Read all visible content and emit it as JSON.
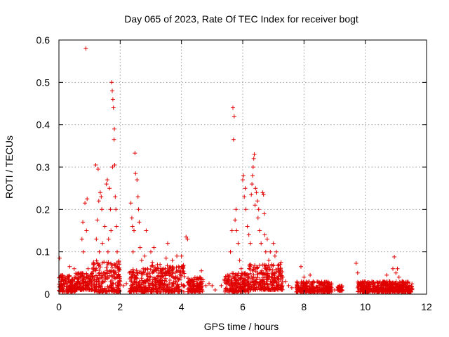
{
  "chart_data": {
    "type": "scatter",
    "title": "Day 065 of 2023, Rate Of TEC Index for receiver bogt",
    "xlabel": "GPS time / hours",
    "ylabel": "ROTI / TECUs",
    "xlim": [
      0,
      12
    ],
    "ylim": [
      0,
      0.6
    ],
    "x_ticks": [
      0,
      2,
      4,
      6,
      8,
      10,
      12
    ],
    "y_ticks": [
      0,
      0.1,
      0.2,
      0.3,
      0.4,
      0.5,
      0.6
    ],
    "x_tick_labels": [
      "0",
      "2",
      "4",
      "6",
      "8",
      "10",
      "12"
    ],
    "y_tick_labels": [
      "0",
      "0.1",
      "0.2",
      "0.3",
      "0.4",
      "0.5",
      "0.6"
    ],
    "grid": true,
    "marker": "plus",
    "color": "#e00000",
    "points": [
      [
        0.02,
        0.085
      ],
      [
        0.05,
        0.03
      ],
      [
        0.1,
        0.02
      ],
      [
        0.15,
        0.025
      ],
      [
        0.2,
        0.04
      ],
      [
        0.25,
        0.018
      ],
      [
        0.3,
        0.03
      ],
      [
        0.35,
        0.065
      ],
      [
        0.4,
        0.02
      ],
      [
        0.45,
        0.035
      ],
      [
        0.5,
        0.06
      ],
      [
        0.55,
        0.025
      ],
      [
        0.6,
        0.03
      ],
      [
        0.65,
        0.05
      ],
      [
        0.7,
        0.04
      ],
      [
        0.75,
        0.13
      ],
      [
        0.78,
        0.17
      ],
      [
        0.8,
        0.1
      ],
      [
        0.85,
        0.215
      ],
      [
        0.88,
        0.58
      ],
      [
        0.9,
        0.15
      ],
      [
        0.92,
        0.225
      ],
      [
        0.95,
        0.06
      ],
      [
        1.0,
        0.03
      ],
      [
        1.05,
        0.035
      ],
      [
        1.1,
        0.04
      ],
      [
        1.15,
        0.07
      ],
      [
        1.2,
        0.305
      ],
      [
        1.22,
        0.13
      ],
      [
        1.25,
        0.175
      ],
      [
        1.28,
        0.295
      ],
      [
        1.3,
        0.22
      ],
      [
        1.32,
        0.1
      ],
      [
        1.35,
        0.24
      ],
      [
        1.38,
        0.23
      ],
      [
        1.4,
        0.2
      ],
      [
        1.42,
        0.12
      ],
      [
        1.45,
        0.05
      ],
      [
        1.5,
        0.16
      ],
      [
        1.55,
        0.26
      ],
      [
        1.58,
        0.27
      ],
      [
        1.6,
        0.1
      ],
      [
        1.62,
        0.13
      ],
      [
        1.65,
        0.25
      ],
      [
        1.68,
        0.2
      ],
      [
        1.7,
        0.15
      ],
      [
        1.72,
        0.5
      ],
      [
        1.74,
        0.48
      ],
      [
        1.75,
        0.3
      ],
      [
        1.76,
        0.46
      ],
      [
        1.78,
        0.44
      ],
      [
        1.8,
        0.365
      ],
      [
        1.81,
        0.39
      ],
      [
        1.82,
        0.305
      ],
      [
        1.84,
        0.23
      ],
      [
        1.86,
        0.2
      ],
      [
        1.88,
        0.16
      ],
      [
        1.9,
        0.1
      ],
      [
        1.95,
        0.06
      ],
      [
        2.0,
        0.03
      ],
      [
        2.1,
        0.02
      ],
      [
        2.2,
        0.025
      ],
      [
        2.3,
        0.05
      ],
      [
        2.35,
        0.215
      ],
      [
        2.38,
        0.18
      ],
      [
        2.4,
        0.16
      ],
      [
        2.42,
        0.1
      ],
      [
        2.45,
        0.15
      ],
      [
        2.48,
        0.333
      ],
      [
        2.5,
        0.285
      ],
      [
        2.55,
        0.27
      ],
      [
        2.58,
        0.23
      ],
      [
        2.6,
        0.2
      ],
      [
        2.62,
        0.17
      ],
      [
        2.65,
        0.11
      ],
      [
        2.7,
        0.08
      ],
      [
        2.75,
        0.06
      ],
      [
        2.8,
        0.09
      ],
      [
        2.85,
        0.15
      ],
      [
        2.9,
        0.06
      ],
      [
        2.95,
        0.04
      ],
      [
        3.0,
        0.1
      ],
      [
        3.05,
        0.075
      ],
      [
        3.1,
        0.11
      ],
      [
        3.2,
        0.06
      ],
      [
        3.3,
        0.07
      ],
      [
        3.4,
        0.05
      ],
      [
        3.5,
        0.085
      ],
      [
        3.55,
        0.12
      ],
      [
        3.6,
        0.06
      ],
      [
        3.7,
        0.08
      ],
      [
        3.8,
        0.05
      ],
      [
        3.85,
        0.09
      ],
      [
        3.9,
        0.065
      ],
      [
        3.95,
        0.035
      ],
      [
        4.0,
        0.09
      ],
      [
        4.05,
        0.05
      ],
      [
        4.1,
        0.02
      ],
      [
        4.15,
        0.135
      ],
      [
        4.2,
        0.13
      ],
      [
        4.3,
        0.03
      ],
      [
        4.4,
        0.02
      ],
      [
        4.5,
        0.025
      ],
      [
        4.6,
        0.04
      ],
      [
        4.65,
        0.055
      ],
      [
        4.7,
        0.03
      ],
      [
        4.8,
        0.02
      ],
      [
        4.9,
        0.025
      ],
      [
        5.0,
        0.02
      ],
      [
        5.1,
        0.01
      ],
      [
        5.3,
        0.02
      ],
      [
        5.4,
        0.035
      ],
      [
        5.5,
        0.045
      ],
      [
        5.6,
        0.1
      ],
      [
        5.65,
        0.15
      ],
      [
        5.68,
        0.44
      ],
      [
        5.7,
        0.365
      ],
      [
        5.72,
        0.42
      ],
      [
        5.75,
        0.175
      ],
      [
        5.78,
        0.2
      ],
      [
        5.8,
        0.15
      ],
      [
        5.85,
        0.12
      ],
      [
        5.9,
        0.08
      ],
      [
        5.95,
        0.06
      ],
      [
        6.0,
        0.27
      ],
      [
        6.02,
        0.28
      ],
      [
        6.05,
        0.23
      ],
      [
        6.08,
        0.25
      ],
      [
        6.1,
        0.2
      ],
      [
        6.15,
        0.16
      ],
      [
        6.2,
        0.14
      ],
      [
        6.25,
        0.12
      ],
      [
        6.28,
        0.235
      ],
      [
        6.3,
        0.26
      ],
      [
        6.32,
        0.28
      ],
      [
        6.34,
        0.3
      ],
      [
        6.36,
        0.32
      ],
      [
        6.38,
        0.33
      ],
      [
        6.4,
        0.21
      ],
      [
        6.42,
        0.25
      ],
      [
        6.45,
        0.24
      ],
      [
        6.48,
        0.22
      ],
      [
        6.5,
        0.18
      ],
      [
        6.52,
        0.2
      ],
      [
        6.55,
        0.15
      ],
      [
        6.6,
        0.12
      ],
      [
        6.65,
        0.24
      ],
      [
        6.68,
        0.235
      ],
      [
        6.7,
        0.19
      ],
      [
        6.72,
        0.14
      ],
      [
        6.75,
        0.1
      ],
      [
        6.8,
        0.13
      ],
      [
        6.85,
        0.08
      ],
      [
        6.9,
        0.1
      ],
      [
        6.95,
        0.07
      ],
      [
        7.0,
        0.12
      ],
      [
        7.05,
        0.09
      ],
      [
        7.1,
        0.1
      ],
      [
        7.15,
        0.06
      ],
      [
        7.2,
        0.05
      ],
      [
        7.25,
        0.075
      ],
      [
        7.3,
        0.04
      ],
      [
        7.4,
        0.03
      ],
      [
        7.5,
        0.02
      ],
      [
        7.6,
        0.015
      ],
      [
        7.8,
        0.025
      ],
      [
        7.9,
        0.065
      ],
      [
        8.0,
        0.04
      ],
      [
        8.1,
        0.02
      ],
      [
        8.2,
        0.045
      ],
      [
        8.3,
        0.03
      ],
      [
        8.4,
        0.015
      ],
      [
        8.5,
        0.02
      ],
      [
        8.7,
        0.01
      ],
      [
        8.9,
        0.015
      ],
      [
        9.0,
        0.01
      ],
      [
        9.2,
        0.015
      ],
      [
        9.7,
        0.073
      ],
      [
        9.75,
        0.05
      ],
      [
        9.8,
        0.02
      ],
      [
        9.9,
        0.015
      ],
      [
        10.0,
        0.03
      ],
      [
        10.1,
        0.02
      ],
      [
        10.2,
        0.01
      ],
      [
        10.3,
        0.02
      ],
      [
        10.4,
        0.015
      ],
      [
        10.5,
        0.02
      ],
      [
        10.6,
        0.03
      ],
      [
        10.7,
        0.045
      ],
      [
        10.8,
        0.03
      ],
      [
        10.9,
        0.06
      ],
      [
        10.95,
        0.088
      ],
      [
        11.0,
        0.05
      ],
      [
        11.05,
        0.06
      ],
      [
        11.1,
        0.04
      ],
      [
        11.2,
        0.03
      ],
      [
        11.3,
        0.02
      ],
      [
        11.4,
        0.015
      ],
      [
        11.5,
        0.015
      ]
    ],
    "dense_bands": [
      {
        "x": [
          0.0,
          0.55
        ],
        "y": [
          0.005,
          0.045
        ]
      },
      {
        "x": [
          0.55,
          1.1
        ],
        "y": [
          0.01,
          0.05
        ]
      },
      {
        "x": [
          1.1,
          2.0
        ],
        "y": [
          0.005,
          0.08
        ]
      },
      {
        "x": [
          2.3,
          3.0
        ],
        "y": [
          0.005,
          0.06
        ]
      },
      {
        "x": [
          3.0,
          4.1
        ],
        "y": [
          0.005,
          0.07
        ]
      },
      {
        "x": [
          4.2,
          4.7
        ],
        "y": [
          0.005,
          0.04
        ]
      },
      {
        "x": [
          5.4,
          6.2
        ],
        "y": [
          0.005,
          0.05
        ]
      },
      {
        "x": [
          6.2,
          7.3
        ],
        "y": [
          0.01,
          0.07
        ]
      },
      {
        "x": [
          7.75,
          8.9
        ],
        "y": [
          0.005,
          0.03
        ]
      },
      {
        "x": [
          9.1,
          9.25
        ],
        "y": [
          0.008,
          0.02
        ]
      },
      {
        "x": [
          9.75,
          11.55
        ],
        "y": [
          0.005,
          0.03
        ]
      }
    ]
  }
}
